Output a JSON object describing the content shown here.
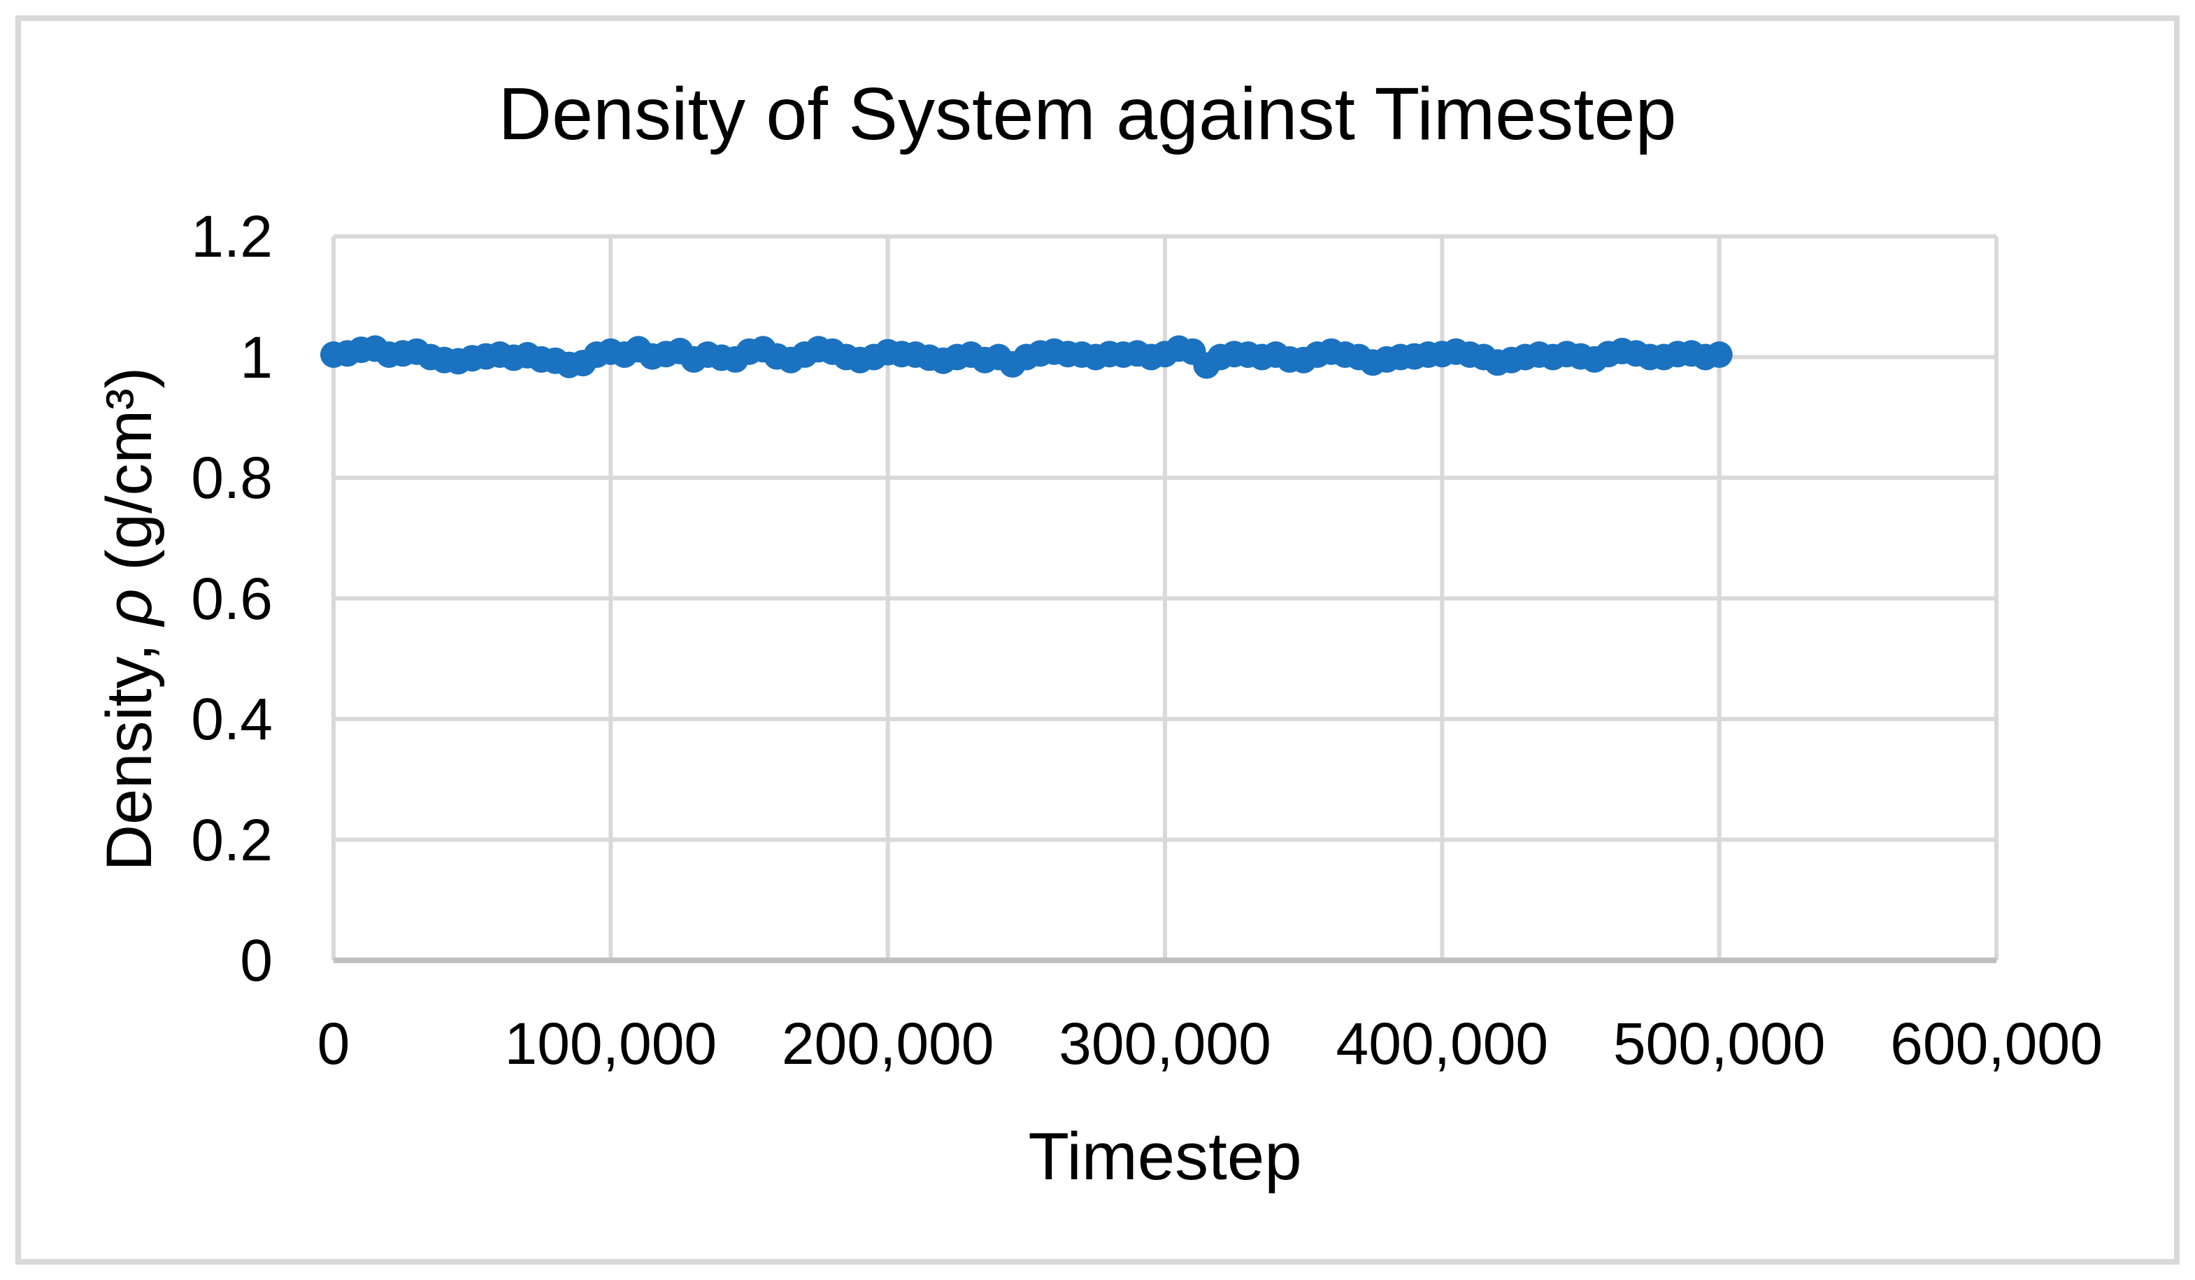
{
  "chart_data": {
    "type": "scatter",
    "title": "Density of System against Timestep",
    "xlabel": "Timestep",
    "ylabel": "Density, ρ (g/cm³)",
    "ylabel_parts": {
      "prefix": "Density, ",
      "symbol": "ρ",
      "suffix": " (g/cm³)"
    },
    "xlim": [
      0,
      600000
    ],
    "ylim": [
      0,
      1.2
    ],
    "x_ticks": [
      0,
      100000,
      200000,
      300000,
      400000,
      500000,
      600000
    ],
    "x_tick_labels": [
      "0",
      "100,000",
      "200,000",
      "300,000",
      "400,000",
      "500,000",
      "600,000"
    ],
    "y_ticks": [
      0,
      0.2,
      0.4,
      0.6,
      0.8,
      1,
      1.2
    ],
    "y_tick_labels": [
      "0",
      "0.2",
      "0.4",
      "0.6",
      "0.8",
      "1",
      "1.2"
    ],
    "grid": true,
    "legend": "none",
    "marker_shape": "circle",
    "series": [
      {
        "x_start": 0,
        "x_step": 5000,
        "values": [
          1.004,
          1.006,
          1.012,
          1.014,
          1.004,
          1.006,
          1.009,
          1.0,
          0.995,
          0.993,
          0.998,
          1.001,
          1.004,
          0.999,
          1.003,
          0.996,
          0.994,
          0.987,
          0.99,
          1.004,
          1.009,
          1.004,
          1.013,
          1.001,
          1.005,
          1.01,
          0.996,
          1.004,
          0.999,
          0.996,
          1.009,
          1.013,
          1.001,
          0.995,
          1.004,
          1.013,
          1.009,
          1.0,
          0.995,
          1.0,
          1.008,
          1.005,
          1.004,
          0.999,
          0.994,
          1.0,
          1.004,
          0.995,
          1.0,
          0.988,
          1.0,
          1.006,
          1.009,
          1.005,
          1.004,
          1.0,
          1.005,
          1.004,
          1.006,
          1.0,
          1.005,
          1.014,
          1.009,
          0.986,
          1.0,
          1.005,
          1.004,
          1.0,
          1.004,
          0.996,
          0.995,
          1.004,
          1.009,
          1.004,
          1.0,
          0.991,
          0.996,
          1.0,
          1.001,
          1.004,
          1.005,
          1.009,
          1.004,
          1.0,
          0.991,
          0.995,
          1.0,
          1.004,
          1.0,
          1.005,
          1.001,
          0.996,
          1.005,
          1.01,
          1.006,
          1.0,
          1.0,
          1.005,
          1.006,
          1.0,
          1.004
        ]
      }
    ]
  },
  "colors": {
    "marker": "#1b72c0",
    "gridline": "#d9d9d9",
    "axis_line": "#bfbfbf",
    "frame_border": "#d9d9d9",
    "text": "#000000",
    "background": "#ffffff"
  }
}
